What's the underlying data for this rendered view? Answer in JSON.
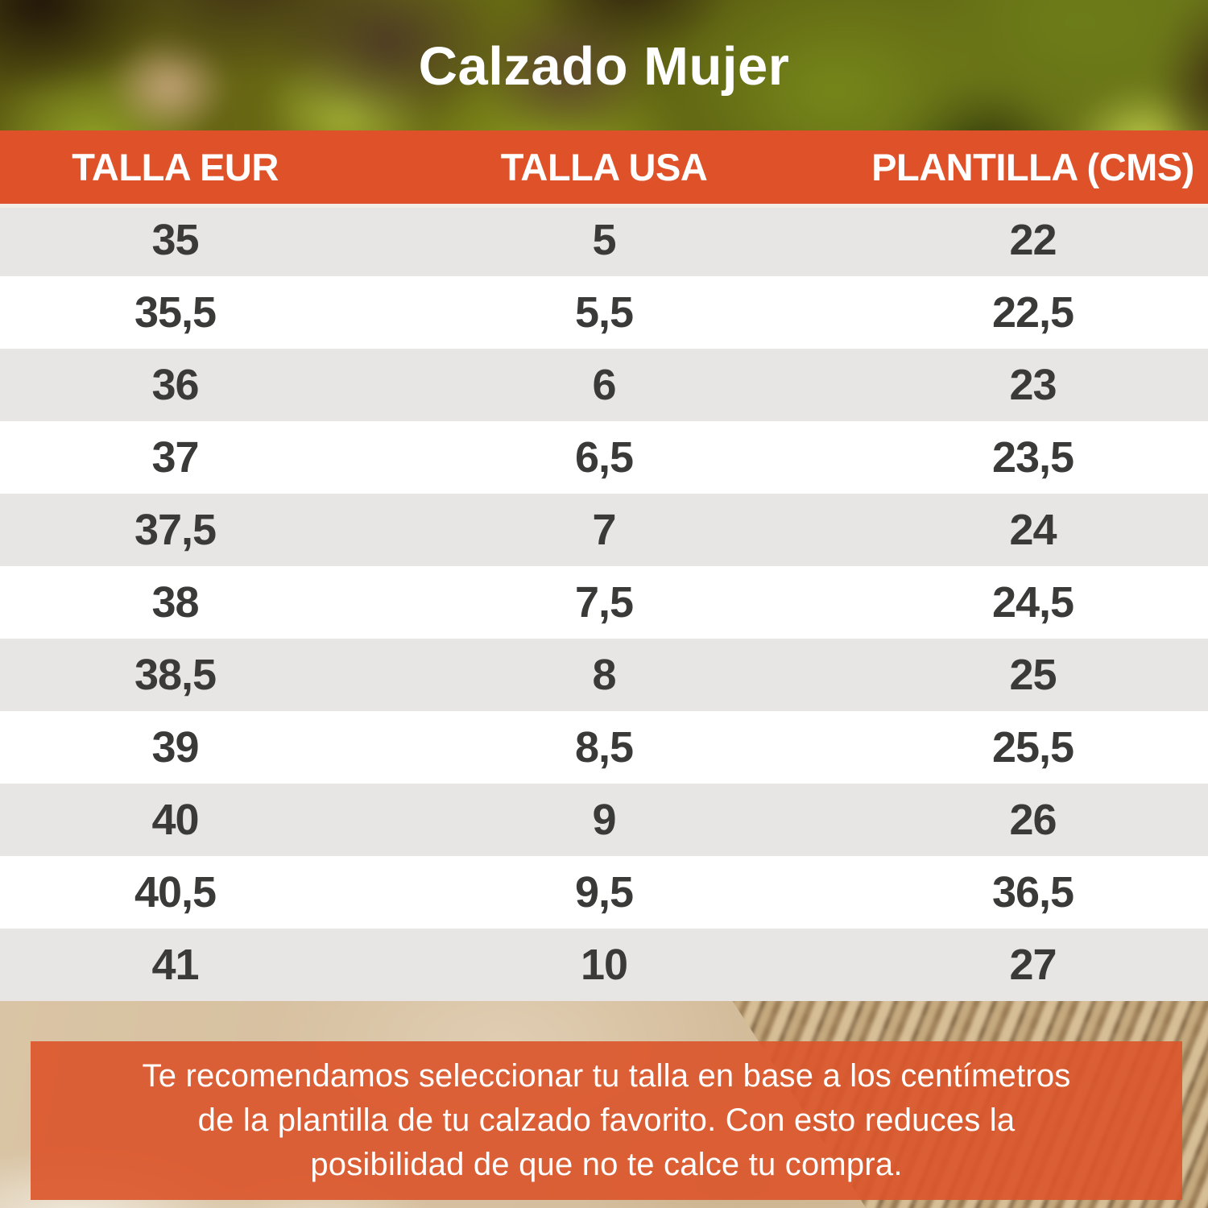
{
  "title": "Calzado Mujer",
  "table": {
    "headers": [
      "TALLA EUR",
      "TALLA USA",
      "PLANTILLA (CMS)"
    ],
    "rows": [
      [
        "35",
        "5",
        "22"
      ],
      [
        "35,5",
        "5,5",
        "22,5"
      ],
      [
        "36",
        "6",
        "23"
      ],
      [
        "37",
        "6,5",
        "23,5"
      ],
      [
        "37,5",
        "7",
        "24"
      ],
      [
        "38",
        "7,5",
        "24,5"
      ],
      [
        "38,5",
        "8",
        "25"
      ],
      [
        "39",
        "8,5",
        "25,5"
      ],
      [
        "40",
        "9",
        "26"
      ],
      [
        "40,5",
        "9,5",
        "36,5"
      ],
      [
        "41",
        "10",
        "27"
      ]
    ]
  },
  "note": {
    "lines": [
      "Te recomendamos seleccionar tu talla en base a los centímetros",
      "de la plantilla de tu calzado favorito. Con esto reduces la",
      "posibilidad de que no te calce tu compra."
    ]
  },
  "colors": {
    "orange": "#DF5229",
    "banner_orange": "rgba(219,84,42,0.90)",
    "row_gray": "#E8E6E4",
    "row_white": "#FFFFFF",
    "text_dark": "#3A3A38",
    "text_white": "#FFFFFF"
  },
  "chart_data": {
    "type": "table",
    "title": "Calzado Mujer",
    "columns": [
      "TALLA EUR",
      "TALLA USA",
      "PLANTILLA (CMS)"
    ],
    "rows": [
      [
        "35",
        "5",
        "22"
      ],
      [
        "35,5",
        "5,5",
        "22,5"
      ],
      [
        "36",
        "6",
        "23"
      ],
      [
        "37",
        "6,5",
        "23,5"
      ],
      [
        "37,5",
        "7",
        "24"
      ],
      [
        "38",
        "7,5",
        "24,5"
      ],
      [
        "38,5",
        "8",
        "25"
      ],
      [
        "39",
        "8,5",
        "25,5"
      ],
      [
        "40",
        "9",
        "26"
      ],
      [
        "40,5",
        "9,5",
        "36,5"
      ],
      [
        "41",
        "10",
        "27"
      ]
    ],
    "footnote": "Te recomendamos seleccionar tu talla en base a los centímetros de la plantilla de tu calzado favorito. Con esto reduces la posibilidad de que no te calce tu compra."
  }
}
